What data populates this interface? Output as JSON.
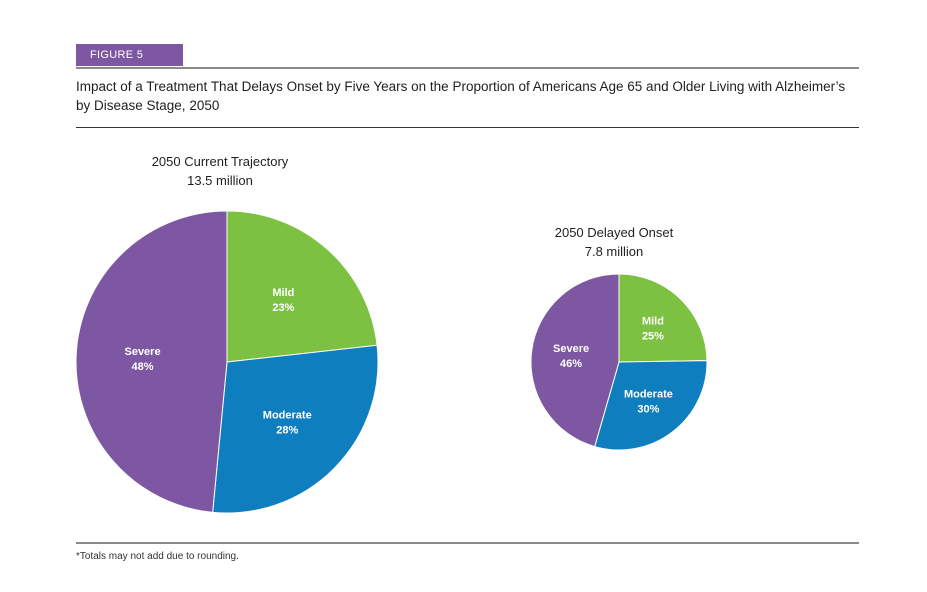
{
  "figure_tag": "FIGURE 5",
  "title": "Impact of a Treatment That Delays Onset by Five Years on the Proportion of Americans Age 65 and Older Living with Alzheimer’s by Disease Stage, 2050",
  "footnote": "*Totals may not add due to rounding.",
  "colors": {
    "mild": "#7cc142",
    "moderate": "#0e7ebf",
    "severe": "#7e57a2"
  },
  "chart_data": [
    {
      "type": "pie",
      "title_line1": "2050 Current Trajectory",
      "title_line2": "13.5  million",
      "total_millions": 13.5,
      "slices": [
        {
          "label": "Mild",
          "value": 23,
          "value_label": "23%",
          "color": "#7cc142"
        },
        {
          "label": "Moderate",
          "value": 28,
          "value_label": "28%",
          "color": "#0e7ebf"
        },
        {
          "label": "Severe",
          "value": 48,
          "value_label": "48%",
          "color": "#7e57a2"
        }
      ]
    },
    {
      "type": "pie",
      "title_line1": "2050 Delayed Onset",
      "title_line2": "7.8 million",
      "total_millions": 7.8,
      "slices": [
        {
          "label": "Mild",
          "value": 25,
          "value_label": "25%",
          "color": "#7cc142"
        },
        {
          "label": "Moderate",
          "value": 30,
          "value_label": "30%",
          "color": "#0e7ebf"
        },
        {
          "label": "Severe",
          "value": 46,
          "value_label": "46%",
          "color": "#7e57a2"
        }
      ]
    }
  ]
}
